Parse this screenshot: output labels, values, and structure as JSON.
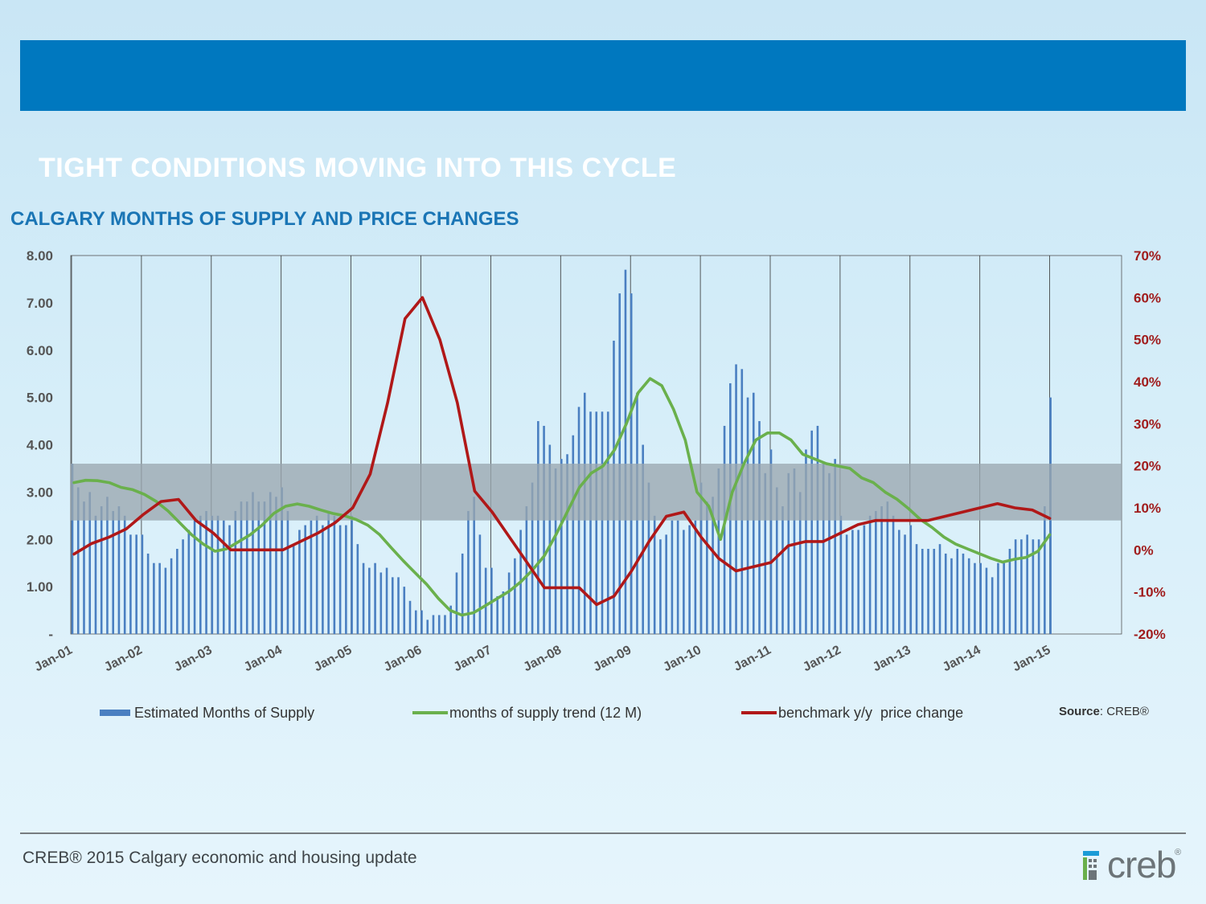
{
  "slide": {
    "title": "TIGHT CONDITIONS MOVING INTO THIS CYCLE",
    "chart_title": "CALGARY MONTHS OF SUPPLY AND PRICE CHANGES",
    "footer": "CREB® 2015 Calgary economic and housing update",
    "source_label": "Source",
    "source_value": ": CREB®",
    "logo_text": "creb",
    "logo_reg": "®"
  },
  "colors": {
    "header": "#0078bf",
    "bars": "#4a7fc1",
    "trend": "#6ab04c",
    "price": "#b01818",
    "band": "#9aa7b0",
    "left_axis": "#555555",
    "right_axis": "#a01c1c"
  },
  "chart_data": {
    "type": "bar",
    "x_ticks": [
      "Jan-01",
      "Jan-02",
      "Jan-03",
      "Jan-04",
      "Jan-05",
      "Jan-06",
      "Jan-07",
      "Jan-08",
      "Jan-09",
      "Jan-10",
      "Jan-11",
      "Jan-12",
      "Jan-13",
      "Jan-14",
      "Jan-15"
    ],
    "y_left_ticks": [
      "-",
      "1.00",
      "2.00",
      "3.00",
      "4.00",
      "5.00",
      "6.00",
      "7.00",
      "8.00"
    ],
    "y_left_lim": [
      0,
      8
    ],
    "y_right_ticks": [
      "-20%",
      "-10%",
      "0%",
      "10%",
      "20%",
      "30%",
      "40%",
      "50%",
      "60%",
      "70%"
    ],
    "y_right_lim": [
      -20,
      70
    ],
    "shaded_band_left_units": [
      2.4,
      3.6
    ],
    "grid": "vertical lines at each January",
    "legend_position": "bottom",
    "series": [
      {
        "name": "Estimated Months of Supply",
        "kind": "bar",
        "axis": "left",
        "values": [
          3.6,
          3.1,
          2.8,
          3.0,
          2.5,
          2.7,
          2.9,
          2.6,
          2.7,
          2.5,
          2.1,
          2.1,
          2.1,
          1.7,
          1.5,
          1.5,
          1.4,
          1.6,
          1.8,
          2.0,
          2.2,
          2.4,
          2.5,
          2.6,
          2.5,
          2.5,
          2.4,
          2.3,
          2.6,
          2.8,
          2.8,
          3.0,
          2.8,
          2.8,
          3.0,
          2.9,
          3.1,
          2.6,
          1.9,
          2.2,
          2.3,
          2.4,
          2.5,
          2.3,
          2.6,
          2.5,
          2.3,
          2.3,
          2.5,
          1.9,
          1.5,
          1.4,
          1.5,
          1.3,
          1.4,
          1.2,
          1.2,
          1.0,
          0.7,
          0.5,
          0.5,
          0.3,
          0.4,
          0.4,
          0.4,
          0.6,
          1.3,
          1.7,
          2.6,
          2.9,
          2.1,
          1.4,
          1.4,
          0.8,
          0.9,
          1.3,
          1.6,
          2.2,
          2.7,
          3.2,
          4.5,
          4.4,
          4.0,
          3.5,
          3.7,
          3.8,
          4.2,
          4.8,
          5.1,
          4.7,
          4.7,
          4.7,
          4.7,
          6.2,
          7.2,
          7.7,
          7.2,
          5.1,
          4.0,
          3.2,
          2.5,
          2.0,
          2.1,
          2.4,
          2.4,
          2.2,
          2.3,
          2.4,
          3.2,
          2.8,
          2.9,
          3.5,
          4.4,
          5.3,
          5.7,
          5.6,
          5.0,
          5.1,
          4.5,
          3.4,
          3.9,
          3.1,
          2.7,
          3.4,
          3.5,
          3.0,
          3.9,
          4.3,
          4.4,
          3.6,
          3.4,
          3.7,
          2.5,
          2.1,
          2.2,
          2.2,
          2.3,
          2.5,
          2.6,
          2.7,
          2.8,
          2.5,
          2.2,
          2.1,
          2.3,
          1.9,
          1.8,
          1.8,
          1.8,
          1.9,
          1.7,
          1.6,
          1.8,
          1.7,
          1.6,
          1.5,
          1.5,
          1.4,
          1.2,
          1.5,
          1.5,
          1.8,
          2.0,
          2.0,
          2.1,
          2.0,
          2.0,
          2.7,
          5.0
        ]
      },
      {
        "name": "months of supply trend (12 M)",
        "kind": "line",
        "axis": "left",
        "values": [
          3.2,
          3.25,
          3.24,
          3.2,
          3.1,
          3.05,
          2.95,
          2.8,
          2.6,
          2.35,
          2.1,
          1.9,
          1.75,
          1.8,
          1.95,
          2.1,
          2.3,
          2.55,
          2.7,
          2.75,
          2.7,
          2.62,
          2.55,
          2.5,
          2.42,
          2.3,
          2.1,
          1.82,
          1.55,
          1.3,
          1.05,
          0.75,
          0.5,
          0.4,
          0.45,
          0.6,
          0.75,
          0.9,
          1.1,
          1.35,
          1.65,
          2.1,
          2.6,
          3.1,
          3.4,
          3.55,
          3.9,
          4.45,
          5.1,
          5.4,
          5.25,
          4.75,
          4.1,
          3.0,
          2.7,
          2.0,
          3.0,
          3.6,
          4.1,
          4.25,
          4.25,
          4.1,
          3.8,
          3.7,
          3.6,
          3.55,
          3.5,
          3.3,
          3.2,
          3.0,
          2.85,
          2.65,
          2.42,
          2.25,
          2.05,
          1.9,
          1.8,
          1.7,
          1.6,
          1.52,
          1.58,
          1.62,
          1.75,
          2.1
        ]
      },
      {
        "name": "benchmark y/y  price change",
        "kind": "line",
        "axis": "right",
        "values": [
          -1,
          1.5,
          3,
          5,
          8.5,
          11.5,
          12,
          7,
          4,
          0,
          0,
          0,
          0,
          2,
          4,
          6.5,
          10,
          18,
          35,
          55,
          60,
          50,
          35,
          14,
          9,
          3,
          -3,
          -9,
          -9,
          -9,
          -13,
          -11,
          -5,
          2,
          8,
          9,
          3,
          -2,
          -5,
          -4,
          -3,
          1,
          2,
          2,
          4,
          6,
          7,
          7,
          7,
          7,
          8,
          9,
          10,
          11,
          10,
          9.5,
          7.5
        ]
      }
    ]
  }
}
